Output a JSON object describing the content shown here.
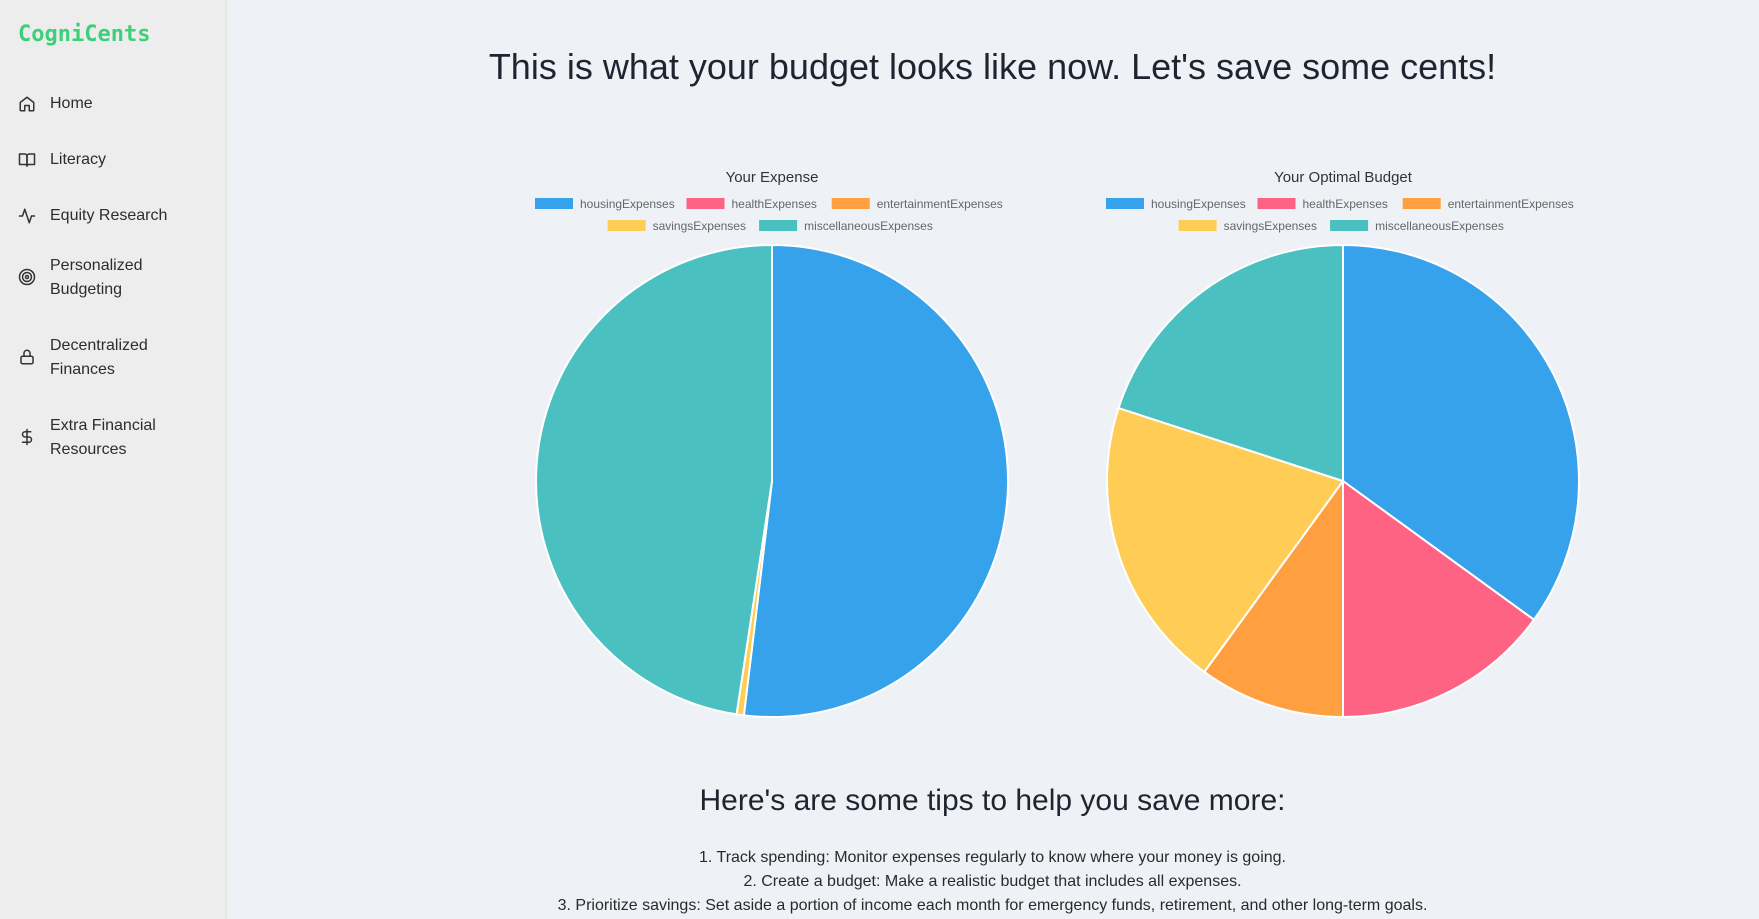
{
  "app": {
    "brand": "CogniCents"
  },
  "sidebar": {
    "items": [
      {
        "label": "Home",
        "icon": "home-icon"
      },
      {
        "label": "Literacy",
        "icon": "book-icon"
      },
      {
        "label": "Equity Research",
        "icon": "activity-icon"
      },
      {
        "label": "Personalized Budgeting",
        "icon": "target-icon"
      },
      {
        "label": "Decentralized Finances",
        "icon": "lock-icon"
      },
      {
        "label": "Extra Financial Resources",
        "icon": "dollar-icon"
      }
    ]
  },
  "main": {
    "headline": "This is what your budget looks like now. Let's save some cents!",
    "tips_title": "Here's are some tips to help you save more:",
    "tips": [
      "1. Track spending: Monitor expenses regularly to know where your money is going.",
      "2. Create a budget: Make a realistic budget that includes all expenses.",
      "3. Prioritize savings: Set aside a portion of income each month for emergency funds, retirement, and other long-term goals."
    ]
  },
  "chart_data": [
    {
      "type": "pie",
      "title": "Your Expense",
      "legend_position": "top",
      "categories": [
        "housingExpenses",
        "healthExpenses",
        "entertainmentExpenses",
        "savingsExpenses",
        "miscellaneousExpenses"
      ],
      "colors": [
        "#36a2eb",
        "#ff6384",
        "#ff9f40",
        "#ffcd56",
        "#4bc0c0"
      ],
      "values": [
        51.9,
        0,
        0,
        0.5,
        47.6
      ]
    },
    {
      "type": "pie",
      "title": "Your Optimal Budget",
      "legend_position": "top",
      "categories": [
        "housingExpenses",
        "healthExpenses",
        "entertainmentExpenses",
        "savingsExpenses",
        "miscellaneousExpenses"
      ],
      "colors": [
        "#36a2eb",
        "#ff6384",
        "#ff9f40",
        "#ffcd56",
        "#4bc0c0"
      ],
      "values": [
        35,
        15,
        10,
        20,
        20
      ]
    }
  ]
}
